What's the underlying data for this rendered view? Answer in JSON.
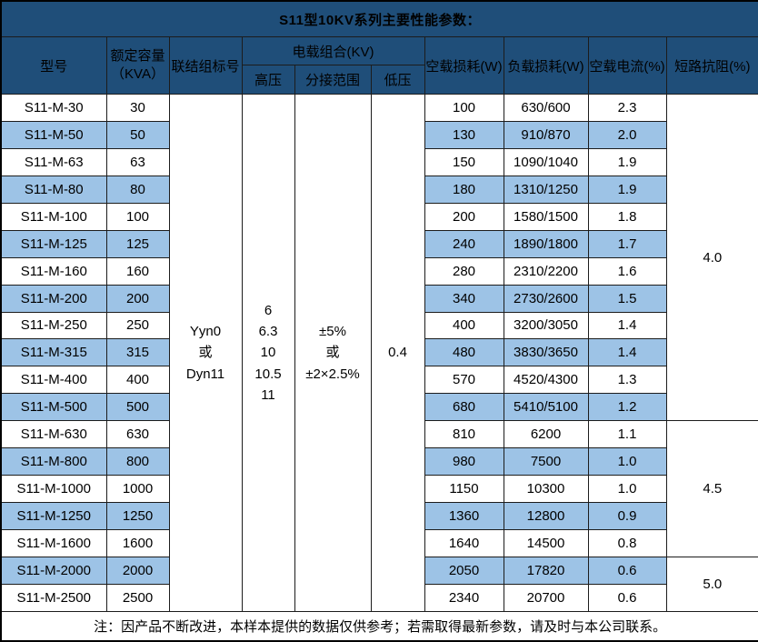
{
  "title": "S11型10KV系列主要性能参数：",
  "table": {
    "headers": {
      "model": "型号",
      "capacity_line1": "额定容量",
      "capacity_line2": "（KVA）",
      "connection": "联结组标号",
      "load_combo": "电载组合(KV)",
      "hv": "高压",
      "tap_range": "分接范围",
      "lv": "低压",
      "no_load_loss": "空载损耗(W)",
      "load_loss": "负载损耗(W)",
      "no_load_current": "空载电流(%)",
      "impedance": "短路抗阻(%)"
    },
    "merged": {
      "connection_lines": [
        "Yyn0",
        "或",
        "Dyn11"
      ],
      "hv_lines": [
        "6",
        "6.3",
        "10",
        "10.5",
        "11"
      ],
      "tap_lines": [
        "±5%",
        "或",
        "±2×2.5%"
      ],
      "lv_value": "0.4"
    },
    "impedance_groups": [
      {
        "value": "4.0",
        "rows": 12
      },
      {
        "value": "4.5",
        "rows": 5
      },
      {
        "value": "5.0",
        "rows": 2
      }
    ],
    "rows": [
      {
        "model": "S11-M-30",
        "kva": "30",
        "no_load_loss": "100",
        "load_loss": "630/600",
        "no_load_current": "2.3"
      },
      {
        "model": "S11-M-50",
        "kva": "50",
        "no_load_loss": "130",
        "load_loss": "910/870",
        "no_load_current": "2.0"
      },
      {
        "model": "S11-M-63",
        "kva": "63",
        "no_load_loss": "150",
        "load_loss": "1090/1040",
        "no_load_current": "1.9"
      },
      {
        "model": "S11-M-80",
        "kva": "80",
        "no_load_loss": "180",
        "load_loss": "1310/1250",
        "no_load_current": "1.9"
      },
      {
        "model": "S11-M-100",
        "kva": "100",
        "no_load_loss": "200",
        "load_loss": "1580/1500",
        "no_load_current": "1.8"
      },
      {
        "model": "S11-M-125",
        "kva": "125",
        "no_load_loss": "240",
        "load_loss": "1890/1800",
        "no_load_current": "1.7"
      },
      {
        "model": "S11-M-160",
        "kva": "160",
        "no_load_loss": "280",
        "load_loss": "2310/2200",
        "no_load_current": "1.6"
      },
      {
        "model": "S11-M-200",
        "kva": "200",
        "no_load_loss": "340",
        "load_loss": "2730/2600",
        "no_load_current": "1.5"
      },
      {
        "model": "S11-M-250",
        "kva": "250",
        "no_load_loss": "400",
        "load_loss": "3200/3050",
        "no_load_current": "1.4"
      },
      {
        "model": "S11-M-315",
        "kva": "315",
        "no_load_loss": "480",
        "load_loss": "3830/3650",
        "no_load_current": "1.4"
      },
      {
        "model": "S11-M-400",
        "kva": "400",
        "no_load_loss": "570",
        "load_loss": "4520/4300",
        "no_load_current": "1.3"
      },
      {
        "model": "S11-M-500",
        "kva": "500",
        "no_load_loss": "680",
        "load_loss": "5410/5100",
        "no_load_current": "1.2"
      },
      {
        "model": "S11-M-630",
        "kva": "630",
        "no_load_loss": "810",
        "load_loss": "6200",
        "no_load_current": "1.1"
      },
      {
        "model": "S11-M-800",
        "kva": "800",
        "no_load_loss": "980",
        "load_loss": "7500",
        "no_load_current": "1.0"
      },
      {
        "model": "S11-M-1000",
        "kva": "1000",
        "no_load_loss": "1150",
        "load_loss": "10300",
        "no_load_current": "1.0"
      },
      {
        "model": "S11-M-1250",
        "kva": "1250",
        "no_load_loss": "1360",
        "load_loss": "12800",
        "no_load_current": "0.9"
      },
      {
        "model": "S11-M-1600",
        "kva": "1600",
        "no_load_loss": "1640",
        "load_loss": "14500",
        "no_load_current": "0.8"
      },
      {
        "model": "S11-M-2000",
        "kva": "2000",
        "no_load_loss": "2050",
        "load_loss": "17820",
        "no_load_current": "0.6"
      },
      {
        "model": "S11-M-2500",
        "kva": "2500",
        "no_load_loss": "2340",
        "load_loss": "20700",
        "no_load_current": "0.6"
      }
    ]
  },
  "footer_note": "注：因产品不断改进，本样本提供的数据仅供参考；若需取得最新参数，请及时与本公司联系。",
  "colors": {
    "header_bg": "#1F4E79",
    "alt_row_bg": "#9DC3E6",
    "border": "#1c1c1c",
    "header_text": "#FFFFFF",
    "body_text": "#000000"
  }
}
